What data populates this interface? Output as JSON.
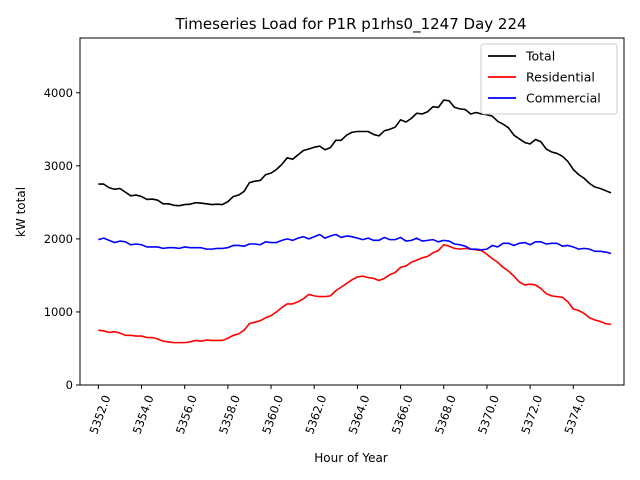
{
  "chart_data": {
    "type": "line",
    "title": "Timeseries Load for P1R p1rhs0_1247  Day 224",
    "xlabel": "Hour of Year",
    "ylabel": "kW total",
    "xlim": [
      5351.15,
      5376.35
    ],
    "ylim": [
      0,
      4750
    ],
    "x_ticks": [
      5352.0,
      5354.0,
      5356.0,
      5358.0,
      5360.0,
      5362.0,
      5364.0,
      5366.0,
      5368.0,
      5370.0,
      5372.0,
      5374.0
    ],
    "x_tick_labels": [
      "5352.0",
      "5354.0",
      "5356.0",
      "5358.0",
      "5360.0",
      "5362.0",
      "5364.0",
      "5366.0",
      "5368.0",
      "5370.0",
      "5372.0",
      "5374.0"
    ],
    "y_ticks": [
      0,
      1000,
      2000,
      3000,
      4000
    ],
    "y_tick_labels": [
      "0",
      "1000",
      "2000",
      "3000",
      "4000"
    ],
    "grid": false,
    "legend_position": "top-right",
    "x_start": 5352.0,
    "x_step": 0.25,
    "series": [
      {
        "name": "Total",
        "color": "#000000",
        "values": [
          2750,
          2750,
          2700,
          2680,
          2690,
          2640,
          2590,
          2600,
          2580,
          2540,
          2545,
          2530,
          2480,
          2480,
          2460,
          2455,
          2470,
          2475,
          2495,
          2490,
          2480,
          2470,
          2475,
          2470,
          2510,
          2580,
          2600,
          2650,
          2770,
          2790,
          2800,
          2880,
          2900,
          2950,
          3020,
          3110,
          3090,
          3150,
          3210,
          3230,
          3255,
          3270,
          3220,
          3250,
          3350,
          3350,
          3420,
          3460,
          3470,
          3470,
          3470,
          3430,
          3410,
          3480,
          3500,
          3530,
          3630,
          3600,
          3650,
          3720,
          3710,
          3740,
          3810,
          3800,
          3900,
          3890,
          3800,
          3780,
          3770,
          3710,
          3730,
          3710,
          3700,
          3680,
          3610,
          3570,
          3520,
          3420,
          3370,
          3320,
          3300,
          3360,
          3330,
          3230,
          3190,
          3170,
          3130,
          3060,
          2950,
          2880,
          2830,
          2760,
          2710,
          2690,
          2660,
          2630
        ]
      },
      {
        "name": "Residential",
        "color": "#ff0000",
        "values": [
          750,
          740,
          720,
          730,
          710,
          680,
          680,
          670,
          670,
          650,
          650,
          630,
          600,
          590,
          580,
          580,
          580,
          590,
          610,
          600,
          615,
          610,
          610,
          610,
          640,
          680,
          700,
          750,
          840,
          860,
          880,
          920,
          950,
          1000,
          1060,
          1110,
          1110,
          1140,
          1180,
          1240,
          1220,
          1210,
          1210,
          1220,
          1290,
          1340,
          1390,
          1440,
          1480,
          1490,
          1470,
          1460,
          1430,
          1460,
          1510,
          1540,
          1610,
          1630,
          1680,
          1710,
          1740,
          1760,
          1810,
          1840,
          1920,
          1900,
          1870,
          1860,
          1870,
          1860,
          1850,
          1840,
          1790,
          1730,
          1680,
          1610,
          1560,
          1490,
          1410,
          1370,
          1380,
          1370,
          1320,
          1250,
          1220,
          1210,
          1200,
          1140,
          1040,
          1020,
          980,
          920,
          890,
          870,
          840,
          830
        ]
      },
      {
        "name": "Commercial",
        "color": "#0000ff",
        "values": [
          1990,
          2010,
          1980,
          1950,
          1970,
          1960,
          1920,
          1930,
          1920,
          1890,
          1890,
          1890,
          1870,
          1880,
          1880,
          1870,
          1890,
          1880,
          1880,
          1880,
          1860,
          1860,
          1870,
          1870,
          1880,
          1910,
          1910,
          1900,
          1930,
          1930,
          1920,
          1960,
          1950,
          1950,
          1980,
          2000,
          1980,
          2010,
          2030,
          2000,
          2030,
          2060,
          2010,
          2040,
          2060,
          2020,
          2040,
          2030,
          2010,
          1990,
          2010,
          1980,
          1980,
          2020,
          1990,
          1990,
          2020,
          1970,
          1980,
          2010,
          1970,
          1980,
          1990,
          1960,
          1980,
          1970,
          1930,
          1920,
          1900,
          1860,
          1860,
          1850,
          1860,
          1910,
          1890,
          1940,
          1940,
          1910,
          1940,
          1950,
          1920,
          1960,
          1960,
          1930,
          1940,
          1940,
          1900,
          1910,
          1890,
          1860,
          1870,
          1860,
          1830,
          1830,
          1820,
          1800
        ]
      }
    ]
  }
}
